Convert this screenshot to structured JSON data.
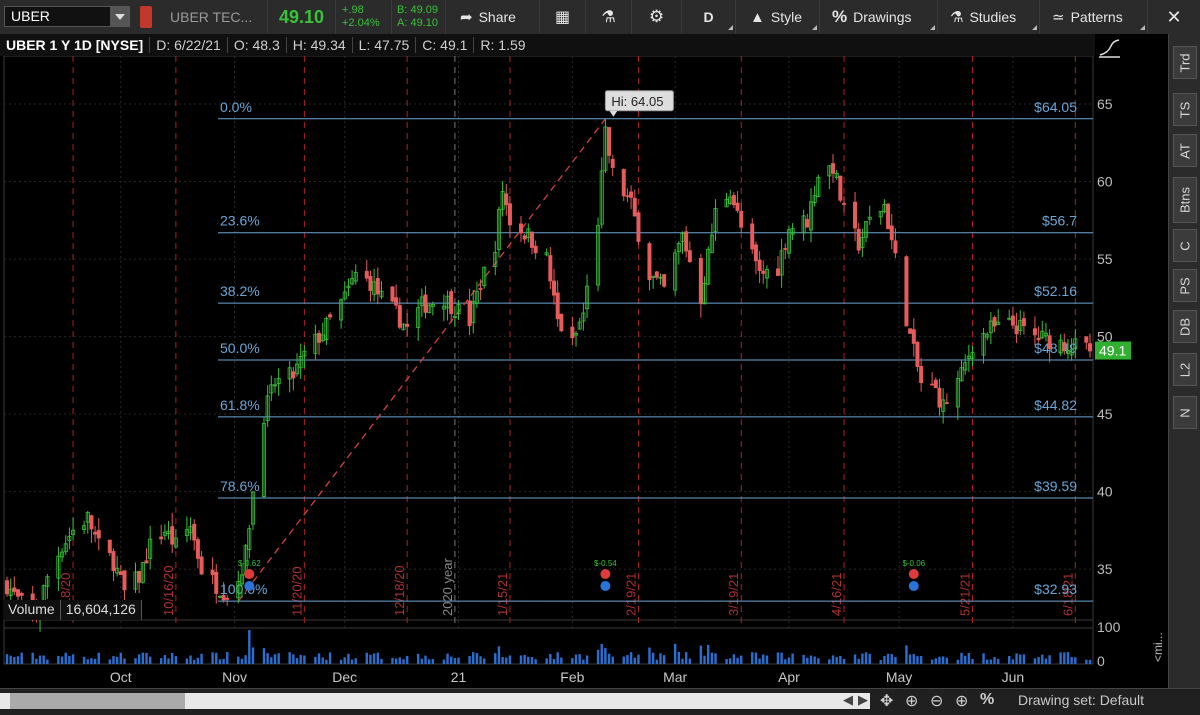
{
  "toolbar": {
    "symbol": "UBER",
    "company": "UBER TEC...",
    "last": "49.10",
    "change": "+.98",
    "change_pct": "+2.04%",
    "bid": "B: 49.09",
    "ask": "A: 49.10",
    "share": "Share",
    "aggregation": "D",
    "style": "Style",
    "drawings": "Drawings",
    "studies": "Studies",
    "patterns": "Patterns"
  },
  "infobar": {
    "symbol": "UBER 1 Y 1D [NYSE]",
    "date": "D: 6/22/21",
    "open": "O: 48.3",
    "high": "H: 49.34",
    "low": "L: 47.75",
    "close": "C: 49.1",
    "range": "R: 1.59"
  },
  "right_tabs": [
    "Trd",
    "TS",
    "AT",
    "Btns",
    "C",
    "PS",
    "DB",
    "L2",
    "N"
  ],
  "volume_panel": {
    "label": "Volume",
    "value": "16,604,126",
    "scale_max": "100",
    "scale_min": "0"
  },
  "bottombar": {
    "drawing_set": "Drawing set: Default",
    "collapse": "<mi..."
  },
  "colors": {
    "up": "#39c239",
    "down": "#e65b5b",
    "fib": "#6aa6d6",
    "last_badge": "#2fb12f",
    "hi_label_bg": "#dddddd"
  },
  "chart_data": {
    "type": "candlestick",
    "x_range": [
      "2020-08-31",
      "2021-06-22"
    ],
    "ylim": [
      31.2,
      68.1
    ],
    "y_ticks": [
      35,
      40,
      45,
      50,
      55,
      60,
      65
    ],
    "x_labels": [
      {
        "date": "2020-10-01",
        "label": "Oct"
      },
      {
        "date": "2020-11-01",
        "label": "Nov"
      },
      {
        "date": "2020-12-01",
        "label": "Dec"
      },
      {
        "date": "2021-01-01",
        "label": "21"
      },
      {
        "date": "2021-02-01",
        "label": "Feb"
      },
      {
        "date": "2021-03-01",
        "label": "Mar"
      },
      {
        "date": "2021-04-01",
        "label": "Apr"
      },
      {
        "date": "2021-05-01",
        "label": "May"
      },
      {
        "date": "2021-06-01",
        "label": "Jun"
      }
    ],
    "vertical_markers": [
      {
        "date": "2020-09-18",
        "label": "9/18/20"
      },
      {
        "date": "2020-10-16",
        "label": "10/16/20"
      },
      {
        "date": "2020-11-20",
        "label": "11/20/20"
      },
      {
        "date": "2020-12-18",
        "label": "12/18/20"
      },
      {
        "date": "2020-12-31",
        "label": "2020 year"
      },
      {
        "date": "2021-01-15",
        "label": "1/15/21"
      },
      {
        "date": "2021-02-19",
        "label": "2/19/21"
      },
      {
        "date": "2021-03-19",
        "label": "3/19/21"
      },
      {
        "date": "2021-04-16",
        "label": "4/16/21"
      },
      {
        "date": "2021-05-21",
        "label": "5/21/21"
      },
      {
        "date": "2021-06-18",
        "label": "6/18/21"
      }
    ],
    "fib_levels": [
      {
        "pct": "0.0%",
        "price": 64.05,
        "label": "$64.05"
      },
      {
        "pct": "23.6%",
        "price": 56.7,
        "label": "$56.7"
      },
      {
        "pct": "38.2%",
        "price": 52.16,
        "label": "$52.16"
      },
      {
        "pct": "50.0%",
        "price": 48.49,
        "label": "$48.49"
      },
      {
        "pct": "61.8%",
        "price": 44.82,
        "label": "$44.82"
      },
      {
        "pct": "78.6%",
        "price": 39.59,
        "label": "$39.59"
      },
      {
        "pct": "100.0%",
        "price": 32.93,
        "label": "$32.93"
      }
    ],
    "trendline": {
      "from": {
        "date": "2020-11-02",
        "price": 32.93
      },
      "to": {
        "date": "2021-02-10",
        "price": 64.05
      }
    },
    "hi_label": {
      "text": "Hi: 64.05",
      "date": "2021-02-10",
      "price": 64.05
    },
    "last_price": {
      "value": 49.1,
      "label": "49.1"
    },
    "earnings_events": [
      {
        "date": "2020-11-05",
        "text": "$-0.62"
      },
      {
        "date": "2021-02-10",
        "text": "$-0.54"
      },
      {
        "date": "2021-05-05",
        "text": "$-0.06"
      }
    ],
    "ohlc_anchors": [
      [
        "2020-08-31",
        34.0
      ],
      [
        "2020-09-03",
        33.0
      ],
      [
        "2020-09-08",
        32.0
      ],
      [
        "2020-09-11",
        34.5
      ],
      [
        "2020-09-15",
        36.5
      ],
      [
        "2020-09-18",
        37.5
      ],
      [
        "2020-09-22",
        38.3
      ],
      [
        "2020-09-25",
        36.5
      ],
      [
        "2020-09-29",
        35.5
      ],
      [
        "2020-10-02",
        33.5
      ],
      [
        "2020-10-06",
        34.5
      ],
      [
        "2020-10-09",
        36.5
      ],
      [
        "2020-10-13",
        37.5
      ],
      [
        "2020-10-16",
        36.5
      ],
      [
        "2020-10-20",
        37.8
      ],
      [
        "2020-10-23",
        35.0
      ],
      [
        "2020-10-27",
        34.0
      ],
      [
        "2020-10-30",
        33.4
      ],
      [
        "2020-11-02",
        34.3
      ],
      [
        "2020-11-04",
        36.0
      ],
      [
        "2020-11-06",
        40.0
      ],
      [
        "2020-11-09",
        45.0
      ],
      [
        "2020-11-12",
        47.0
      ],
      [
        "2020-11-17",
        47.5
      ],
      [
        "2020-11-20",
        48.8
      ],
      [
        "2020-11-25",
        50.3
      ],
      [
        "2020-12-01",
        52.5
      ],
      [
        "2020-12-04",
        54.0
      ],
      [
        "2020-12-08",
        53.5
      ],
      [
        "2020-12-11",
        52.5
      ],
      [
        "2020-12-15",
        51.5
      ],
      [
        "2020-12-18",
        50.5
      ],
      [
        "2020-12-22",
        52.0
      ],
      [
        "2020-12-28",
        52.5
      ],
      [
        "2021-01-04",
        51.0
      ],
      [
        "2021-01-07",
        53.5
      ],
      [
        "2021-01-11",
        56.0
      ],
      [
        "2021-01-13",
        59.5
      ],
      [
        "2021-01-15",
        57.5
      ],
      [
        "2021-01-20",
        56.5
      ],
      [
        "2021-01-25",
        55.0
      ],
      [
        "2021-01-28",
        51.0
      ],
      [
        "2021-02-01",
        49.5
      ],
      [
        "2021-02-04",
        51.5
      ],
      [
        "2021-02-08",
        57.5
      ],
      [
        "2021-02-10",
        63.0
      ],
      [
        "2021-02-12",
        60.5
      ],
      [
        "2021-02-17",
        58.5
      ],
      [
        "2021-02-22",
        54.0
      ],
      [
        "2021-02-26",
        53.0
      ],
      [
        "2021-03-03",
        56.5
      ],
      [
        "2021-03-08",
        52.5
      ],
      [
        "2021-03-12",
        58.0
      ],
      [
        "2021-03-16",
        59.5
      ],
      [
        "2021-03-19",
        57.0
      ],
      [
        "2021-03-24",
        54.0
      ],
      [
        "2021-03-29",
        54.5
      ],
      [
        "2021-04-01",
        57.0
      ],
      [
        "2021-04-06",
        57.5
      ],
      [
        "2021-04-09",
        60.5
      ],
      [
        "2021-04-13",
        61.0
      ],
      [
        "2021-04-16",
        58.0
      ],
      [
        "2021-04-20",
        56.0
      ],
      [
        "2021-04-23",
        57.5
      ],
      [
        "2021-04-27",
        58.5
      ],
      [
        "2021-04-30",
        55.0
      ],
      [
        "2021-05-04",
        50.0
      ],
      [
        "2021-05-07",
        47.0
      ],
      [
        "2021-05-11",
        46.5
      ],
      [
        "2021-05-13",
        45.5
      ],
      [
        "2021-05-18",
        47.5
      ],
      [
        "2021-05-21",
        49.5
      ],
      [
        "2021-05-26",
        50.5
      ],
      [
        "2021-06-01",
        50.8
      ],
      [
        "2021-06-07",
        50.0
      ],
      [
        "2021-06-11",
        49.8
      ],
      [
        "2021-06-16",
        49.5
      ],
      [
        "2021-06-22",
        49.1
      ]
    ]
  }
}
